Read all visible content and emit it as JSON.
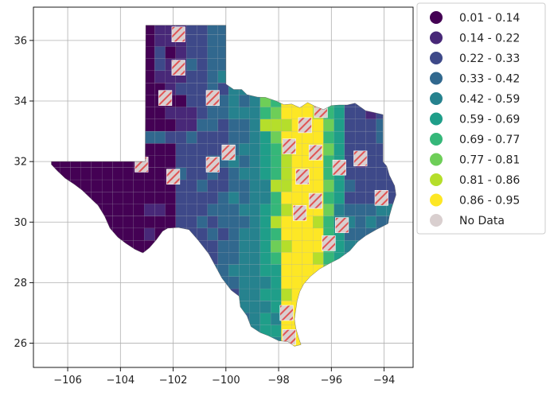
{
  "chart_data": {
    "type": "choropleth",
    "title": "",
    "xlabel": "",
    "ylabel": "",
    "xlim": [
      -107.3,
      -92.9
    ],
    "ylim": [
      25.2,
      37.1
    ],
    "grid": true,
    "x_ticks": [
      {
        "value": -106,
        "label": "−106"
      },
      {
        "value": -104,
        "label": "−104"
      },
      {
        "value": -102,
        "label": "−102"
      },
      {
        "value": -100,
        "label": "−100"
      },
      {
        "value": -98,
        "label": "−98"
      },
      {
        "value": -96,
        "label": "−96"
      },
      {
        "value": -94,
        "label": "−94"
      }
    ],
    "y_ticks": [
      {
        "value": 26,
        "label": "26"
      },
      {
        "value": 28,
        "label": "28"
      },
      {
        "value": 30,
        "label": "30"
      },
      {
        "value": 32,
        "label": "32"
      },
      {
        "value": 34,
        "label": "34"
      },
      {
        "value": 36,
        "label": "36"
      }
    ],
    "legend_position": "outside-right-top",
    "legend": [
      {
        "label": "0.01 - 0.14",
        "color": "#440154"
      },
      {
        "label": "0.14 - 0.22",
        "color": "#482878"
      },
      {
        "label": "0.22 - 0.33",
        "color": "#3e4989"
      },
      {
        "label": "0.33 - 0.42",
        "color": "#31688e"
      },
      {
        "label": "0.42 - 0.59",
        "color": "#26828e"
      },
      {
        "label": "0.59 - 0.69",
        "color": "#1f9e89"
      },
      {
        "label": "0.69 - 0.77",
        "color": "#35b779"
      },
      {
        "label": "0.77 - 0.81",
        "color": "#6ece58"
      },
      {
        "label": "0.81 - 0.86",
        "color": "#b5de2b"
      },
      {
        "label": "0.86 - 0.95",
        "color": "#fde725"
      },
      {
        "label": "No Data",
        "color": "#d9cfcf"
      }
    ],
    "no_data_hatch_color": "#e05555",
    "no_data_patches": [
      {
        "lon": -101.8,
        "lat": 36.2
      },
      {
        "lon": -101.8,
        "lat": 35.1
      },
      {
        "lon": -102.3,
        "lat": 34.1
      },
      {
        "lon": -100.5,
        "lat": 34.1
      },
      {
        "lon": -96.4,
        "lat": 33.7
      },
      {
        "lon": -97.0,
        "lat": 33.2
      },
      {
        "lon": -99.9,
        "lat": 32.3
      },
      {
        "lon": -100.5,
        "lat": 31.9
      },
      {
        "lon": -103.2,
        "lat": 31.9
      },
      {
        "lon": -102.0,
        "lat": 31.5
      },
      {
        "lon": -97.6,
        "lat": 32.5
      },
      {
        "lon": -96.6,
        "lat": 32.3
      },
      {
        "lon": -95.7,
        "lat": 31.8
      },
      {
        "lon": -94.9,
        "lat": 32.1
      },
      {
        "lon": -97.1,
        "lat": 31.5
      },
      {
        "lon": -96.6,
        "lat": 30.7
      },
      {
        "lon": -97.2,
        "lat": 30.3
      },
      {
        "lon": -95.6,
        "lat": 29.9
      },
      {
        "lon": -96.1,
        "lat": 29.3
      },
      {
        "lon": -94.1,
        "lat": 30.8
      },
      {
        "lon": -97.7,
        "lat": 27.0
      },
      {
        "lon": -97.6,
        "lat": 26.2
      }
    ]
  }
}
